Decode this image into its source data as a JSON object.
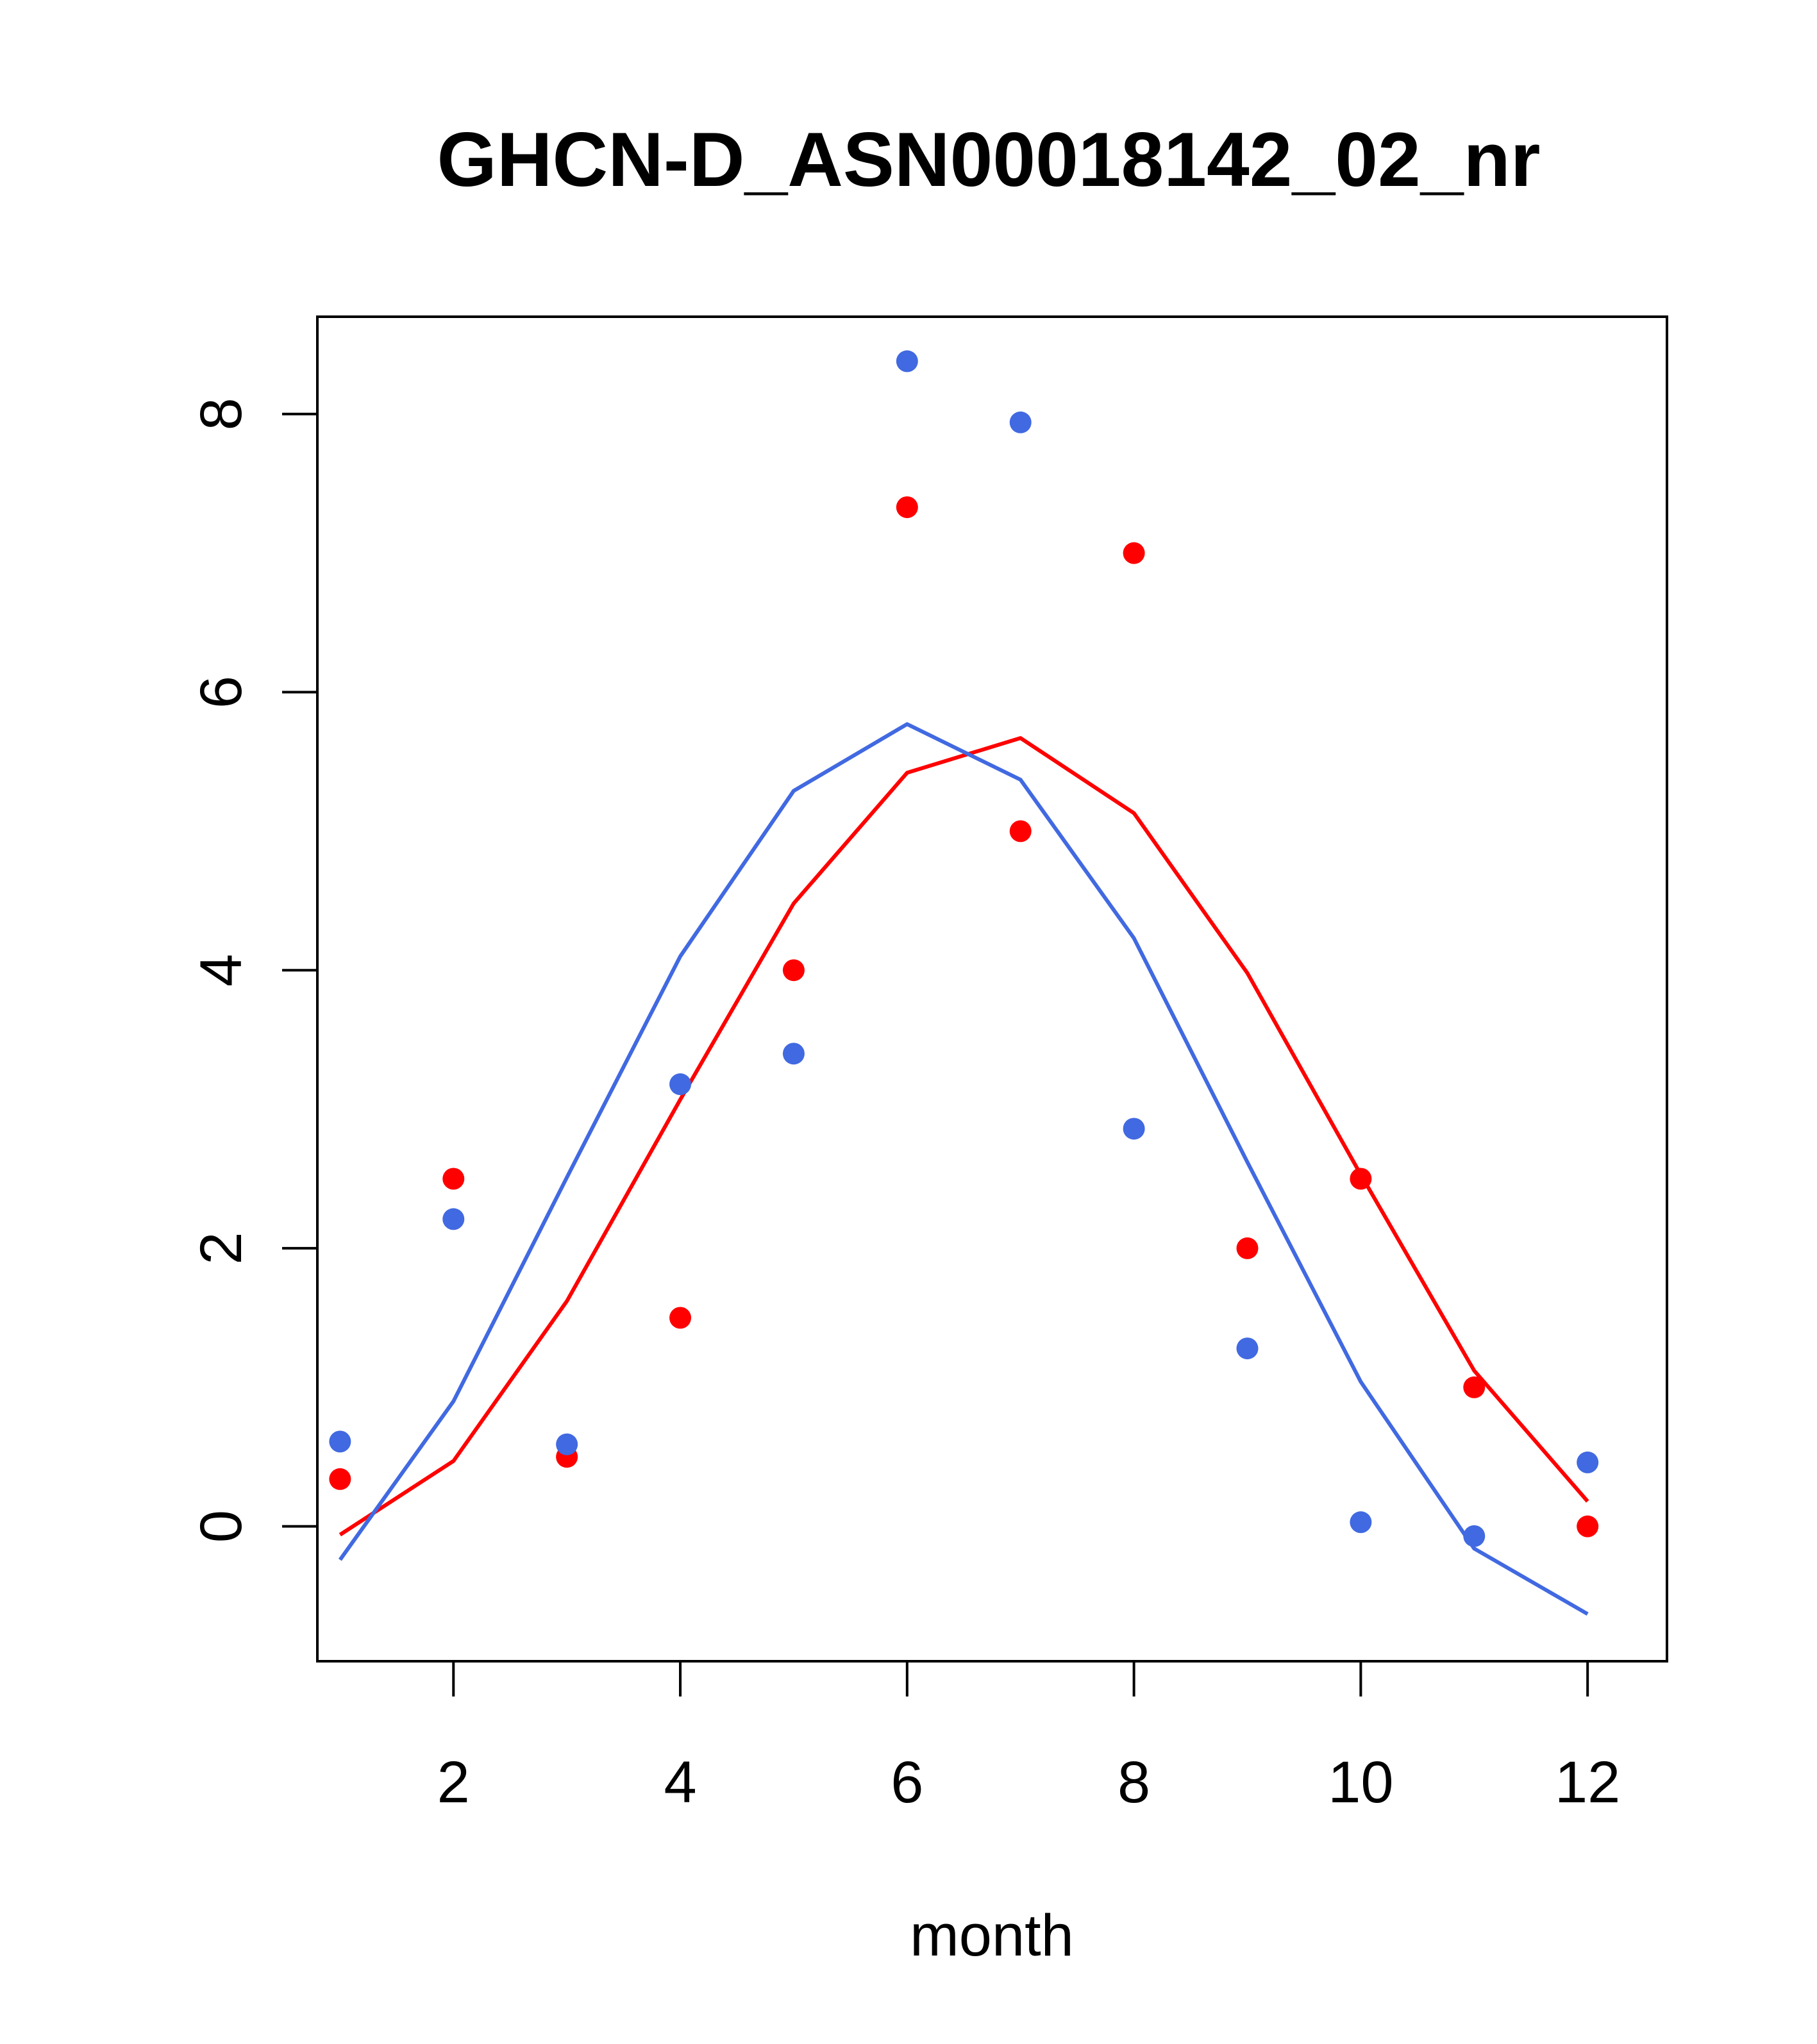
{
  "chart_data": {
    "type": "scatter",
    "title": "GHCN-D_ASN00018142_02_nr",
    "xlabel": "month",
    "ylabel": "",
    "xlim": [
      0.8,
      12.7
    ],
    "ylim": [
      -0.97,
      8.7
    ],
    "xticks": [
      2,
      4,
      6,
      8,
      10,
      12
    ],
    "yticks": [
      0,
      2,
      4,
      6,
      8
    ],
    "grid": false,
    "legend": "none",
    "series": [
      {
        "color": "#ff0000",
        "points": [
          {
            "x": 1,
            "y": 0.34
          },
          {
            "x": 2,
            "y": 2.5
          },
          {
            "x": 3,
            "y": 0.5
          },
          {
            "x": 4,
            "y": 1.5
          },
          {
            "x": 5,
            "y": 4.0
          },
          {
            "x": 6,
            "y": 7.33
          },
          {
            "x": 7,
            "y": 5.0
          },
          {
            "x": 8,
            "y": 7.0
          },
          {
            "x": 9,
            "y": 2.0
          },
          {
            "x": 10,
            "y": 2.5
          },
          {
            "x": 11,
            "y": 1.0
          },
          {
            "x": 12,
            "y": 0.0
          }
        ],
        "line": [
          {
            "x": 1,
            "y": -0.06
          },
          {
            "x": 2,
            "y": 0.47
          },
          {
            "x": 3,
            "y": 1.62
          },
          {
            "x": 4,
            "y": 3.07
          },
          {
            "x": 5,
            "y": 4.48
          },
          {
            "x": 6,
            "y": 5.42
          },
          {
            "x": 7,
            "y": 5.67
          },
          {
            "x": 8,
            "y": 5.13
          },
          {
            "x": 9,
            "y": 3.98
          },
          {
            "x": 10,
            "y": 2.53
          },
          {
            "x": 11,
            "y": 1.12
          },
          {
            "x": 12,
            "y": 0.18
          }
        ]
      },
      {
        "color": "#4169e1",
        "points": [
          {
            "x": 1,
            "y": 0.61
          },
          {
            "x": 2,
            "y": 2.21
          },
          {
            "x": 3,
            "y": 0.59
          },
          {
            "x": 4,
            "y": 3.18
          },
          {
            "x": 5,
            "y": 3.4
          },
          {
            "x": 6,
            "y": 8.38
          },
          {
            "x": 7,
            "y": 7.94
          },
          {
            "x": 8,
            "y": 2.86
          },
          {
            "x": 9,
            "y": 1.28
          },
          {
            "x": 10,
            "y": 0.03
          },
          {
            "x": 11,
            "y": -0.07
          },
          {
            "x": 12,
            "y": 0.46
          }
        ],
        "line": [
          {
            "x": 1,
            "y": -0.24
          },
          {
            "x": 2,
            "y": 0.9
          },
          {
            "x": 3,
            "y": 2.51
          },
          {
            "x": 4,
            "y": 4.1
          },
          {
            "x": 5,
            "y": 5.29
          },
          {
            "x": 6,
            "y": 5.77
          },
          {
            "x": 7,
            "y": 5.37
          },
          {
            "x": 8,
            "y": 4.23
          },
          {
            "x": 9,
            "y": 2.62
          },
          {
            "x": 10,
            "y": 1.04
          },
          {
            "x": 11,
            "y": -0.16
          },
          {
            "x": 12,
            "y": -0.63
          }
        ]
      }
    ]
  }
}
